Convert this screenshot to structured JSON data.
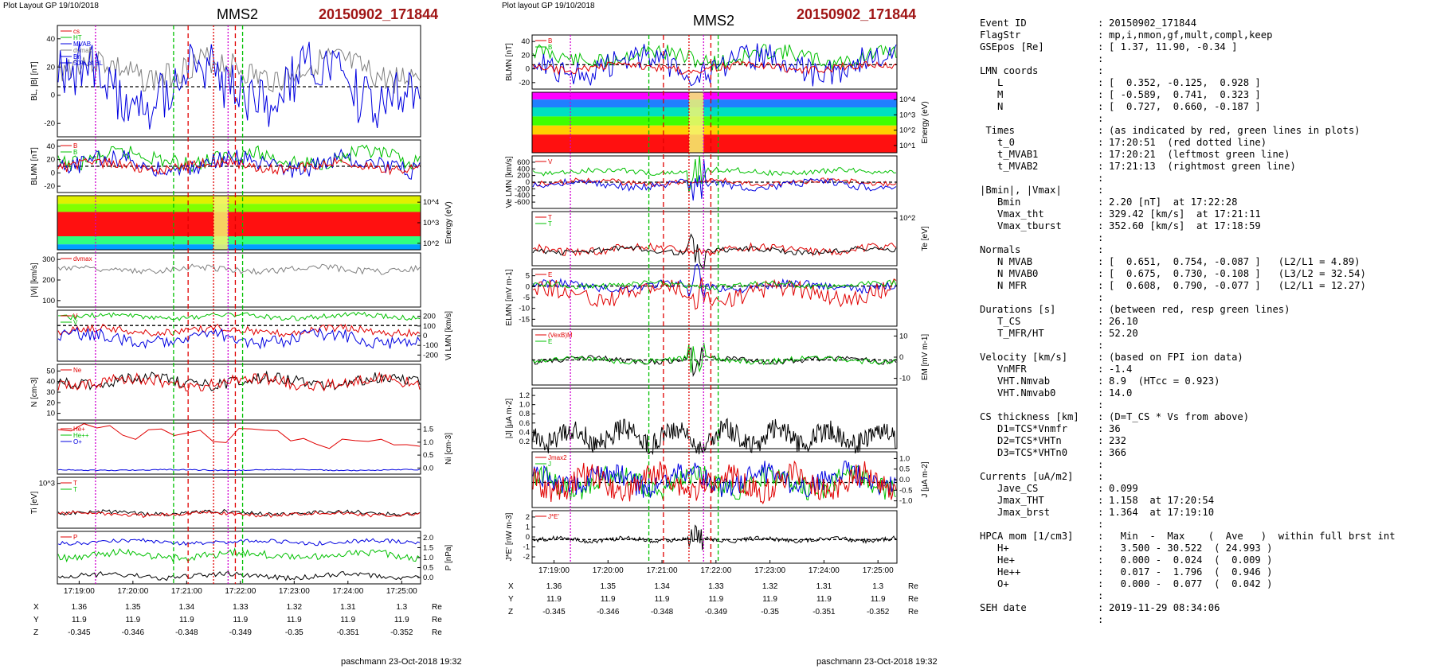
{
  "left_plot": {
    "header": "Plot Layout GP 19/10/2018",
    "spacecraft": "MMS2",
    "event": "20150902_171844",
    "footer": "paschmann 23-Oct-2018 19:32",
    "time_ticks": [
      "17:19:00",
      "17:20:00",
      "17:21:00",
      "17:22:00",
      "17:23:00",
      "17:24:00",
      "17:25:00"
    ],
    "position_rows": [
      {
        "label": "X",
        "values": [
          "1.36",
          "1.35",
          "1.34",
          "1.33",
          "1.32",
          "1.31",
          "1.3"
        ],
        "unit": "Re"
      },
      {
        "label": "Y",
        "values": [
          "11.9",
          "11.9",
          "11.9",
          "11.9",
          "11.9",
          "11.9",
          "11.9"
        ],
        "unit": "Re"
      },
      {
        "label": "Z",
        "values": [
          "-0.345",
          "-0.346",
          "-0.348",
          "-0.349",
          "-0.35",
          "-0.351",
          "-0.352"
        ],
        "unit": "Re"
      }
    ],
    "panels": [
      {
        "ylabel_left": "BL, |B| [nT]",
        "ylabel_right": "",
        "ticks": [
          "40",
          "20",
          "0",
          "-20"
        ],
        "tick_side": "left",
        "legend": [
          "cs",
          "HT",
          "MVAB",
          "dvmax",
          "Bn",
          "50% of BL"
        ]
      },
      {
        "ylabel_left": "BLMN [nT]",
        "ylabel_right": "",
        "ticks": [
          "40",
          "20",
          "0",
          "-20"
        ],
        "tick_side": "left",
        "legend": [
          "B",
          "B"
        ]
      },
      {
        "ylabel_left": "",
        "ylabel_right": "Energy (eV)",
        "ticks": [
          "10^4",
          "10^3",
          "10^2"
        ],
        "tick_side": "right",
        "legend": []
      },
      {
        "ylabel_left": "|Vi| [km/s]",
        "ylabel_right": "",
        "ticks": [
          "300",
          "200",
          "100"
        ],
        "tick_side": "left",
        "legend": [
          "dvmax"
        ]
      },
      {
        "ylabel_left": "",
        "ylabel_right": "Vi LMN [km/s]",
        "ticks": [
          "200",
          "100",
          "0",
          "-100",
          "-200"
        ],
        "tick_side": "right",
        "legend": [
          "V",
          "V"
        ]
      },
      {
        "ylabel_left": "N [cm-3]",
        "ylabel_right": "",
        "ticks": [
          "50",
          "40",
          "30",
          "20",
          "10"
        ],
        "tick_side": "left",
        "legend": [
          "Ne"
        ]
      },
      {
        "ylabel_left": "",
        "ylabel_right": "Ni [cm-3]",
        "ticks": [
          "1.5",
          "1.0",
          "0.5",
          "0.0"
        ],
        "tick_side": "right",
        "legend": [
          "He+",
          "He++",
          "O+"
        ]
      },
      {
        "ylabel_left": "Ti [eV]",
        "ylabel_right": "",
        "ticks": [
          "10^3"
        ],
        "tick_side": "left",
        "legend": [
          "T",
          "T"
        ]
      },
      {
        "ylabel_left": "",
        "ylabel_right": "P [nPa]",
        "ticks": [
          "2.0",
          "1.5",
          "1.0",
          "0.5",
          "0.0"
        ],
        "tick_side": "right",
        "legend": [
          "P"
        ]
      }
    ]
  },
  "right_plot": {
    "header": "Plot layout GP 19/10/2018",
    "spacecraft": "MMS2",
    "event": "20150902_171844",
    "footer": "paschmann 23-Oct-2018 19:32",
    "time_ticks": [
      "17:19:00",
      "17:20:00",
      "17:21:00",
      "17:22:00",
      "17:23:00",
      "17:24:00",
      "17:25:00"
    ],
    "position_rows": [
      {
        "label": "X",
        "values": [
          "1.36",
          "1.35",
          "1.34",
          "1.33",
          "1.32",
          "1.31",
          "1.3"
        ],
        "unit": "Re"
      },
      {
        "label": "Y",
        "values": [
          "11.9",
          "11.9",
          "11.9",
          "11.9",
          "11.9",
          "11.9",
          "11.9"
        ],
        "unit": "Re"
      },
      {
        "label": "Z",
        "values": [
          "-0.345",
          "-0.346",
          "-0.348",
          "-0.349",
          "-0.35",
          "-0.351",
          "-0.352"
        ],
        "unit": "Re"
      }
    ],
    "panels": [
      {
        "ylabel_left": "BLMN [nT]",
        "ylabel_right": "",
        "ticks": [
          "40",
          "20",
          "0",
          "-20"
        ],
        "tick_side": "left",
        "legend": [
          "B",
          "B"
        ]
      },
      {
        "ylabel_left": "",
        "ylabel_right": "Energy (eV)",
        "ticks": [
          "10^4",
          "10^3",
          "10^2",
          "10^1"
        ],
        "tick_side": "right",
        "legend": []
      },
      {
        "ylabel_left": "Ve LMN [km/s]",
        "ylabel_right": "",
        "ticks": [
          "600",
          "400",
          "200",
          "0",
          "-200",
          "-400",
          "-600"
        ],
        "tick_side": "left",
        "legend": [
          "V"
        ]
      },
      {
        "ylabel_left": "",
        "ylabel_right": "Te [eV]",
        "ticks": [
          "10^2"
        ],
        "tick_side": "right",
        "legend": [
          "T",
          "T"
        ]
      },
      {
        "ylabel_left": "ELMN [mV m-1]",
        "ylabel_right": "",
        "ticks": [
          "5",
          "0",
          "-5",
          "-10",
          "-15"
        ],
        "tick_side": "left",
        "legend": [
          "E"
        ]
      },
      {
        "ylabel_left": "",
        "ylabel_right": "EM [mV m-1]",
        "ticks": [
          "10",
          "0",
          "-10"
        ],
        "tick_side": "right",
        "legend": [
          "(VexB)M",
          "E"
        ]
      },
      {
        "ylabel_left": "|J| [μA m-2]",
        "ylabel_right": "",
        "ticks": [
          "1.2",
          "1.0",
          "0.8",
          "0.6",
          "0.4",
          "0.2"
        ],
        "tick_side": "left",
        "legend": []
      },
      {
        "ylabel_left": "",
        "ylabel_right": "J [μA m-2]",
        "ticks": [
          "1.0",
          "0.5",
          "0.0",
          "-0.5",
          "-1.0"
        ],
        "tick_side": "right",
        "legend": [
          "Jmax2",
          "J"
        ]
      },
      {
        "ylabel_left": "J*E' [nW m-3]",
        "ylabel_right": "",
        "ticks": [
          "2",
          "1",
          "0",
          "-1",
          "-2"
        ],
        "tick_side": "left",
        "legend": [
          "J*E'"
        ]
      }
    ]
  },
  "info_panel": {
    "rows": [
      {
        "key": "Event ID",
        "value": "20150902_171844"
      },
      {
        "key": "FlagStr",
        "value": "mp,i,nmon,gf,mult,compl,keep"
      },
      {
        "key": "GSEpos [Re]",
        "value": "[ 1.37, 11.90, -0.34 ]"
      },
      {
        "key": "",
        "value": ""
      },
      {
        "key": "LMN coords",
        "value": ""
      },
      {
        "key": "   L",
        "value": "[  0.352, -0.125,  0.928 ]"
      },
      {
        "key": "   M",
        "value": "[ -0.589,  0.741,  0.323 ]"
      },
      {
        "key": "   N",
        "value": "[  0.727,  0.660, -0.187 ]"
      },
      {
        "key": "",
        "value": ""
      },
      {
        "key": " Times",
        "value": "(as indicated by red, green lines in plots)"
      },
      {
        "key": "   t_0",
        "value": "17:20:51  (red dotted line)"
      },
      {
        "key": "   t_MVAB1",
        "value": "17:20:21  (leftmost green line)"
      },
      {
        "key": "   t_MVAB2",
        "value": "17:21:13  (rightmost green line)"
      },
      {
        "key": "",
        "value": ""
      },
      {
        "key": "|Bmin|, |Vmax|",
        "value": ""
      },
      {
        "key": "   Bmin",
        "value": "2.20 [nT]  at 17:22:28"
      },
      {
        "key": "   Vmax_tht",
        "value": "329.42 [km/s]  at 17:21:11"
      },
      {
        "key": "   Vmax_tburst",
        "value": "352.60 [km/s]  at 17:18:59"
      },
      {
        "key": "",
        "value": ""
      },
      {
        "key": "Normals",
        "value": ""
      },
      {
        "key": "   N MVAB",
        "value": "[  0.651,  0.754, -0.087 ]   (L2/L1 = 4.89)"
      },
      {
        "key": "   N MVAB0",
        "value": "[  0.675,  0.730, -0.108 ]   (L3/L2 = 32.54)"
      },
      {
        "key": "   N MFR",
        "value": "[  0.608,  0.790, -0.077 ]   (L2/L1 = 12.27)"
      },
      {
        "key": "",
        "value": ""
      },
      {
        "key": "Durations [s]",
        "value": "(between red, resp green lines)"
      },
      {
        "key": "   T_CS",
        "value": "26.10"
      },
      {
        "key": "   T_MFR/HT",
        "value": "52.20"
      },
      {
        "key": "",
        "value": ""
      },
      {
        "key": "Velocity [km/s]",
        "value": "(based on FPI ion data)"
      },
      {
        "key": "   VnMFR",
        "value": "-1.4"
      },
      {
        "key": "   VHT.Nmvab",
        "value": "8.9  (HTcc = 0.923)"
      },
      {
        "key": "   VHT.Nmvab0",
        "value": "14.0"
      },
      {
        "key": "",
        "value": ""
      },
      {
        "key": "CS thickness [km]",
        "value": "(D=T_CS * Vs from above)"
      },
      {
        "key": "   D1=TCS*Vnmfr",
        "value": "36"
      },
      {
        "key": "   D2=TCS*VHTn",
        "value": "232"
      },
      {
        "key": "   D3=TCS*VHTn0",
        "value": "366"
      },
      {
        "key": "",
        "value": ""
      },
      {
        "key": "Currents [uA/m2]",
        "value": ""
      },
      {
        "key": "   Jave_CS",
        "value": "0.099"
      },
      {
        "key": "   Jmax_THT",
        "value": "1.158  at 17:20:54"
      },
      {
        "key": "   Jmax_brst",
        "value": "1.364  at 17:19:10"
      },
      {
        "key": "",
        "value": ""
      },
      {
        "key": "HPCA mom [1/cm3]",
        "value": "  Min  -  Max    (  Ave   )  within full brst int"
      },
      {
        "key": "   H+",
        "value": "  3.500 - 30.522  ( 24.993 )"
      },
      {
        "key": "   He+",
        "value": "  0.000 -  0.024  (  0.009 )"
      },
      {
        "key": "   He++",
        "value": "  0.017 -  1.796  (  0.946 )"
      },
      {
        "key": "   O+",
        "value": "  0.000 -  0.077  (  0.042 )"
      },
      {
        "key": "",
        "value": ""
      },
      {
        "key": "SEH date",
        "value": "2019-11-29 08:34:06"
      },
      {
        "key": "",
        "value": ""
      }
    ]
  },
  "chart_data": {
    "type": "line",
    "x_range": [
      "17:18:44",
      "17:25:30"
    ],
    "event_lines": {
      "t_0": "17:20:51",
      "t_MVAB1": "17:20:21",
      "t_MVAB2": "17:21:13"
    },
    "colors": {
      "red": "#e00000",
      "green": "#00c000",
      "blue": "#0000e0",
      "black": "#000000",
      "grey": "#808080",
      "magenta": "#d000d0"
    }
  }
}
